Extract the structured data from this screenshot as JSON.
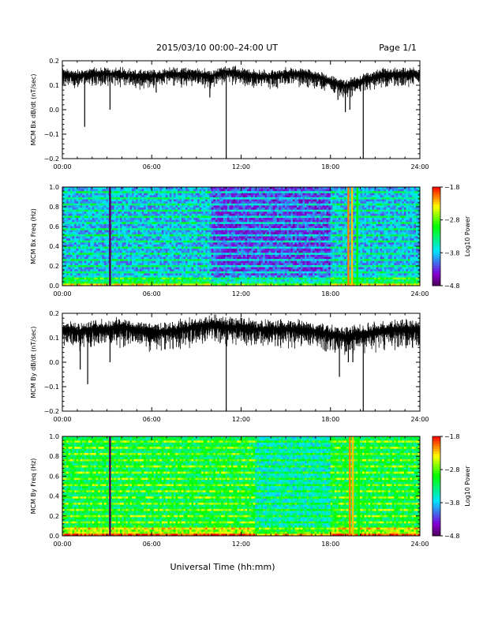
{
  "header": {
    "title": "2015/03/10  00:00–24:00 UT",
    "page": "Page 1/1"
  },
  "footer": {
    "xlabel": "Universal Time (hh:mm)"
  },
  "chart_data": [
    {
      "type": "line",
      "ylabel": "MCM Bx dB/dt (nT/sec)",
      "ylim": [
        -0.2,
        0.2
      ],
      "xlim": [
        0,
        24
      ],
      "y_ticks": [
        "0.2",
        "0.1",
        "0.0",
        "−0.1",
        "−0.2"
      ],
      "x_ticks": [
        "00:00",
        "06:00",
        "12:00",
        "18:00",
        "24:00"
      ],
      "series": [
        {
          "baseline": [
            [
              0,
              0.15
            ],
            [
              1,
              0.14
            ],
            [
              2,
              0.15
            ],
            [
              3,
              0.15
            ],
            [
              4,
              0.15
            ],
            [
              5,
              0.14
            ],
            [
              6,
              0.14
            ],
            [
              7,
              0.15
            ],
            [
              8,
              0.15
            ],
            [
              9,
              0.15
            ],
            [
              10,
              0.14
            ],
            [
              11,
              0.16
            ],
            [
              12,
              0.15
            ],
            [
              13,
              0.14
            ],
            [
              14,
              0.14
            ],
            [
              15,
              0.15
            ],
            [
              16,
              0.15
            ],
            [
              17,
              0.14
            ],
            [
              18,
              0.12
            ],
            [
              19,
              0.1
            ],
            [
              20,
              0.12
            ],
            [
              21,
              0.14
            ],
            [
              22,
              0.15
            ],
            [
              23,
              0.15
            ],
            [
              24,
              0.15
            ]
          ],
          "noise_amplitude": 0.03,
          "spikes": [
            [
              1.5,
              -0.07
            ],
            [
              3.2,
              0.0
            ],
            [
              6.3,
              0.07
            ],
            [
              9.9,
              0.05
            ],
            [
              11.0,
              -0.2
            ],
            [
              18.5,
              0.04
            ],
            [
              19.0,
              -0.01
            ],
            [
              19.3,
              0.0
            ],
            [
              20.2,
              -0.2
            ]
          ]
        }
      ]
    },
    {
      "type": "heatmap",
      "ylabel": "MCM Bx Freq (Hz)",
      "ylim": [
        0.0,
        1.0
      ],
      "xlim": [
        0,
        24
      ],
      "y_ticks": [
        "1.0",
        "0.8",
        "0.6",
        "0.4",
        "0.2",
        "0.0"
      ],
      "x_ticks": [
        "00:00",
        "06:00",
        "12:00",
        "18:00",
        "24:00"
      ],
      "colorbar": {
        "label": "Log10 Power",
        "ticks": [
          "−1.8",
          "−2.8",
          "−3.8",
          "−4.8"
        ],
        "range": [
          -4.8,
          -1.8
        ]
      },
      "base_level": 0.3,
      "harmonic_spacing_hz": 0.063,
      "quiet_intervals": [
        [
          10.0,
          18.0
        ]
      ],
      "low_freq_enhancement": 0.35,
      "vertical_lines": [
        {
          "t": 3.2,
          "level": 0.0
        },
        {
          "t": 19.2,
          "level": 0.9
        },
        {
          "t": 19.45,
          "level": 0.85
        },
        {
          "t": 19.8,
          "level": 0.6
        }
      ]
    },
    {
      "type": "line",
      "ylabel": "MCM By dB/dt (nT/sec)",
      "ylim": [
        -0.2,
        0.2
      ],
      "xlim": [
        0,
        24
      ],
      "y_ticks": [
        "0.2",
        "0.1",
        "0.0",
        "−0.1",
        "−0.2"
      ],
      "x_ticks": [
        "00:00",
        "06:00",
        "12:00",
        "18:00",
        "24:00"
      ],
      "series": [
        {
          "baseline": [
            [
              0,
              0.14
            ],
            [
              1,
              0.13
            ],
            [
              2,
              0.14
            ],
            [
              3,
              0.14
            ],
            [
              4,
              0.15
            ],
            [
              5,
              0.14
            ],
            [
              6,
              0.13
            ],
            [
              7,
              0.13
            ],
            [
              8,
              0.14
            ],
            [
              9,
              0.15
            ],
            [
              10,
              0.16
            ],
            [
              11,
              0.15
            ],
            [
              12,
              0.15
            ],
            [
              13,
              0.14
            ],
            [
              14,
              0.14
            ],
            [
              15,
              0.14
            ],
            [
              16,
              0.14
            ],
            [
              17,
              0.13
            ],
            [
              18,
              0.12
            ],
            [
              19,
              0.11
            ],
            [
              20,
              0.12
            ],
            [
              21,
              0.13
            ],
            [
              22,
              0.14
            ],
            [
              23,
              0.14
            ],
            [
              24,
              0.14
            ]
          ],
          "noise_amplitude": 0.045,
          "spikes": [
            [
              1.2,
              -0.03
            ],
            [
              1.7,
              -0.09
            ],
            [
              3.2,
              0.0
            ],
            [
              11.0,
              -0.2
            ],
            [
              18.6,
              -0.06
            ],
            [
              19.2,
              0.0
            ],
            [
              19.5,
              0.0
            ],
            [
              20.2,
              -0.2
            ]
          ]
        }
      ]
    },
    {
      "type": "heatmap",
      "ylabel": "MCM By Freq (Hz)",
      "ylim": [
        0.0,
        1.0
      ],
      "xlim": [
        0,
        24
      ],
      "y_ticks": [
        "1.0",
        "0.8",
        "0.6",
        "0.4",
        "0.2",
        "0.0"
      ],
      "x_ticks": [
        "00:00",
        "06:00",
        "12:00",
        "18:00",
        "24:00"
      ],
      "colorbar": {
        "label": "Log10 Power",
        "ticks": [
          "−1.8",
          "−2.8",
          "−3.8",
          "−4.8"
        ],
        "range": [
          -4.8,
          -1.8
        ]
      },
      "base_level": 0.52,
      "harmonic_spacing_hz": 0.063,
      "quiet_intervals": [
        [
          13.0,
          18.0
        ]
      ],
      "low_freq_enhancement": 0.3,
      "vertical_lines": [
        {
          "t": 3.2,
          "level": 0.0
        },
        {
          "t": 19.3,
          "level": 0.9
        },
        {
          "t": 19.5,
          "level": 0.85
        },
        {
          "t": 19.9,
          "level": 0.6
        }
      ]
    }
  ]
}
